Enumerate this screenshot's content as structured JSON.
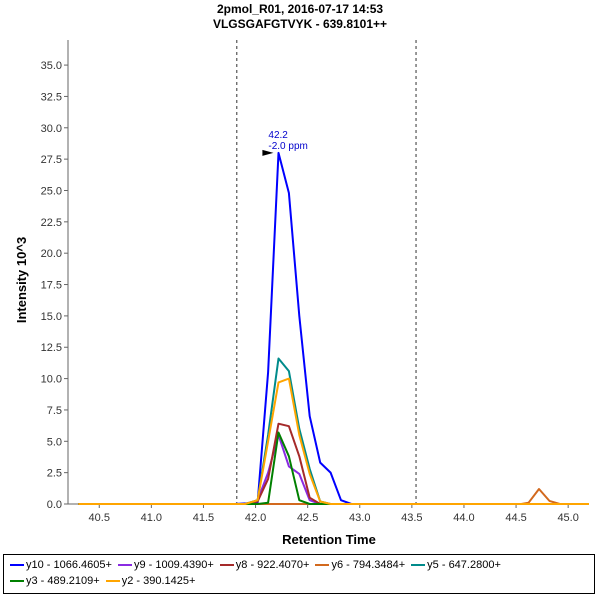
{
  "chart_data": {
    "type": "line",
    "title": "2pmol_R01, 2016-07-17 14:53",
    "subtitle": "VLGSGAFGTVYK - 639.8101++",
    "xlabel": "Retention Time",
    "ylabel": "Intensity 10^3",
    "xlim": [
      40.2,
      45.2
    ],
    "ylim": [
      0,
      37.0
    ],
    "x_ticks": [
      "40.5",
      "41.0",
      "41.5",
      "42.0",
      "42.5",
      "43.0",
      "43.5",
      "44.0",
      "44.5",
      "45.0"
    ],
    "y_ticks": [
      "0.0",
      "2.5",
      "5.0",
      "7.5",
      "10.0",
      "12.5",
      "15.0",
      "17.5",
      "20.0",
      "22.5",
      "25.0",
      "27.5",
      "30.0",
      "32.5",
      "35.0"
    ],
    "boundaries": [
      41.82,
      43.54
    ],
    "annotation": {
      "x": 42.2,
      "y": 28.0,
      "lines": [
        "42.2",
        "-2.0 ppm"
      ]
    },
    "grid": false,
    "legend_position": "bottom",
    "series": [
      {
        "name": "y10 - 1066.4605+",
        "color": "#0000ff",
        "x": [
          40.3,
          41.8,
          42.02,
          42.12,
          42.22,
          42.32,
          42.42,
          42.52,
          42.62,
          42.72,
          42.82,
          42.92,
          43.0,
          45.2
        ],
        "y": [
          0,
          0,
          0.1,
          10.5,
          28.0,
          24.8,
          15.0,
          7.0,
          3.3,
          2.5,
          0.3,
          0,
          0,
          0
        ]
      },
      {
        "name": "y9 - 1009.4390+",
        "color": "#8a2be2",
        "x": [
          40.3,
          41.9,
          42.02,
          42.12,
          42.22,
          42.32,
          42.42,
          42.52,
          42.62,
          45.2
        ],
        "y": [
          0,
          0,
          0.3,
          2.5,
          5.5,
          3.0,
          2.4,
          0.3,
          0,
          0
        ]
      },
      {
        "name": "y8 - 922.4070+",
        "color": "#a52a2a",
        "x": [
          40.3,
          41.9,
          42.02,
          42.12,
          42.22,
          42.32,
          42.42,
          42.52,
          42.62,
          45.2
        ],
        "y": [
          0,
          0,
          0.2,
          2.0,
          6.4,
          6.2,
          3.8,
          0.5,
          0,
          0
        ]
      },
      {
        "name": "y6 - 794.3484+",
        "color": "#d2691e",
        "x": [
          40.3,
          44.55,
          44.62,
          44.72,
          44.82,
          44.92,
          45.2
        ],
        "y": [
          0,
          0,
          0.1,
          1.2,
          0.25,
          0,
          0
        ]
      },
      {
        "name": "y5 - 647.2800+",
        "color": "#008b8b",
        "x": [
          40.3,
          41.9,
          42.02,
          42.12,
          42.22,
          42.32,
          42.42,
          42.52,
          42.62,
          42.72,
          45.2
        ],
        "y": [
          0,
          0,
          0.3,
          5.5,
          11.6,
          10.6,
          6.0,
          2.8,
          0.2,
          0,
          0
        ]
      },
      {
        "name": "y3 - 489.2109+",
        "color": "#008000",
        "x": [
          40.3,
          41.9,
          42.02,
          42.12,
          42.22,
          42.32,
          42.42,
          42.52,
          45.2
        ],
        "y": [
          0,
          0,
          0,
          0.1,
          5.7,
          3.8,
          0.3,
          0,
          0
        ]
      },
      {
        "name": "y2 - 390.1425+",
        "color": "#ffa500",
        "x": [
          40.3,
          41.9,
          42.02,
          42.12,
          42.22,
          42.32,
          42.42,
          42.52,
          42.62,
          42.72,
          45.2
        ],
        "y": [
          0,
          0,
          0.3,
          5.0,
          9.7,
          10.0,
          5.5,
          2.4,
          0.2,
          0,
          0
        ]
      }
    ]
  }
}
